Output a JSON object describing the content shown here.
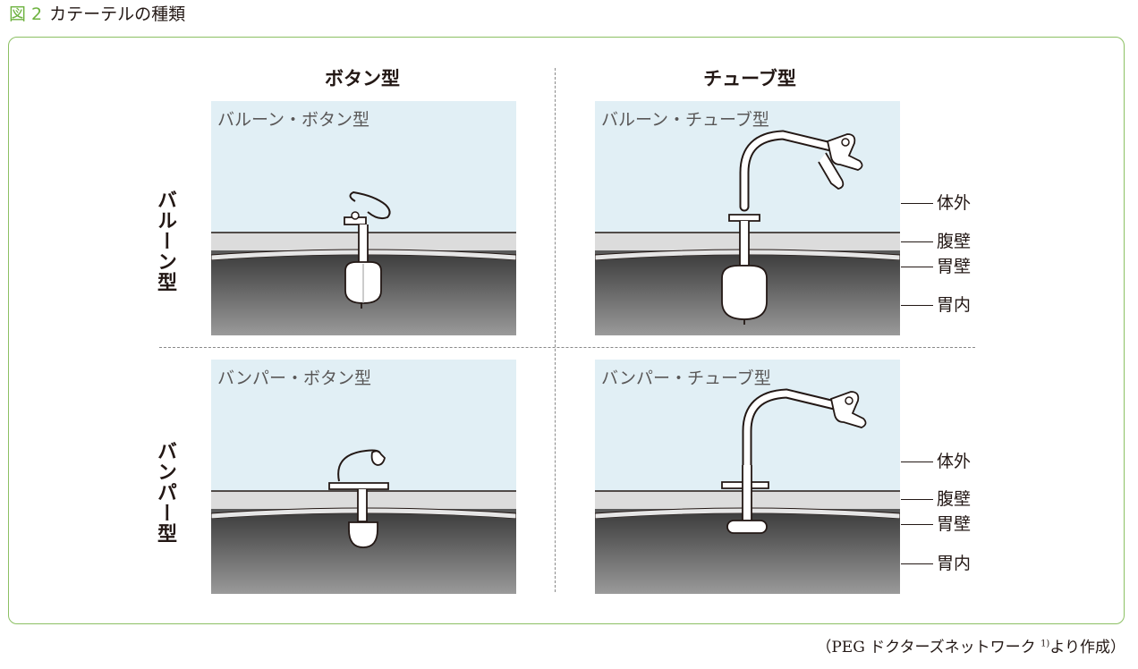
{
  "figure": {
    "number": "図 2",
    "title": "カテーテルの種類"
  },
  "columns": {
    "button": "ボタン型",
    "tube": "チューブ型"
  },
  "rows": {
    "balloon": "バルーン型",
    "bumper": "バンパー型"
  },
  "panels": {
    "balloon_button": "バルーン・ボタン型",
    "balloon_tube": "バルーン・チューブ型",
    "bumper_button": "バンパー・ボタン型",
    "bumper_tube": "バンパー・チューブ型"
  },
  "layers": {
    "outside": "体外",
    "abdominal_wall": "腹壁",
    "stomach_wall": "胃壁",
    "stomach_inside": "胃内"
  },
  "source": {
    "prefix": "（PEG ドクターズネットワーク",
    "ref": "1)",
    "suffix": "より作成）"
  },
  "colors": {
    "figure_number": "#6db23f",
    "frame": "#8cc063",
    "sky": "#e1eff5",
    "abdominal_wall": "#dcdcdc",
    "stomach": "#5a5a5a"
  }
}
